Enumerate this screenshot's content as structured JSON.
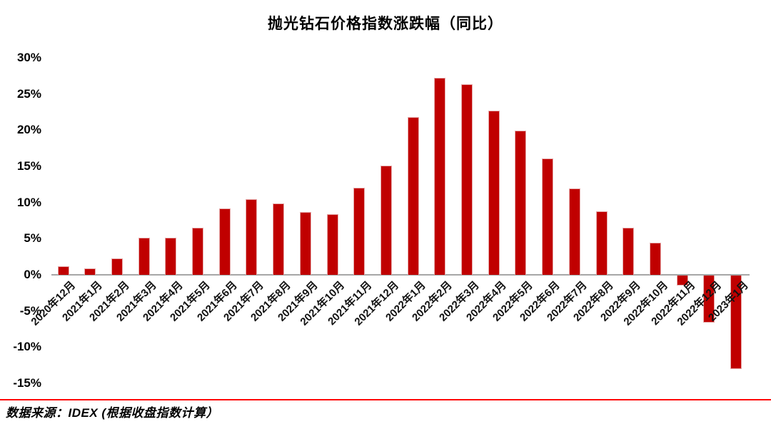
{
  "title": "抛光钻石价格指数涨跌幅（同比）",
  "source_note": "数据来源：IDEX (根据收盘指数计算）",
  "colors": {
    "bar": "#c00000",
    "bar_edge": "#e6abab",
    "zero_axis": "#a6a6a6",
    "separator": "#ff0000",
    "text": "#000000"
  },
  "chart_data": {
    "type": "bar",
    "title": "抛光钻石价格指数涨跌幅（同比）",
    "unit": "%",
    "categories": [
      "2020年12月",
      "2021年1月",
      "2021年2月",
      "2021年3月",
      "2021年4月",
      "2021年5月",
      "2021年6月",
      "2021年7月",
      "2021年8月",
      "2021年9月",
      "2021年10月",
      "2021年11月",
      "2021年12月",
      "2022年1月",
      "2022年2月",
      "2022年3月",
      "2022年4月",
      "2022年5月",
      "2022年6月",
      "2022年7月",
      "2022年8月",
      "2022年9月",
      "2022年10月",
      "2022年11月",
      "2022年12月",
      "2023年1月"
    ],
    "values": [
      1.2,
      0.9,
      2.3,
      5.1,
      5.1,
      6.5,
      9.2,
      10.5,
      9.9,
      8.7,
      8.4,
      12.0,
      15.1,
      21.8,
      27.2,
      26.3,
      22.7,
      19.9,
      16.1,
      11.9,
      8.8,
      6.5,
      4.4,
      -1.4,
      -6.5,
      -12.9
    ],
    "xlabel": "",
    "ylabel": "",
    "ylim": [
      -15,
      30
    ],
    "ytick_step": 5,
    "ytick_labels": [
      "30%",
      "25%",
      "20%",
      "15%",
      "10%",
      "5%",
      "0%",
      "-5%",
      "-10%",
      "-15%"
    ],
    "grid": false,
    "legend": false,
    "bar_color": "#c00000",
    "source_note": "数据来源：IDEX (根据收盘指数计算）"
  }
}
